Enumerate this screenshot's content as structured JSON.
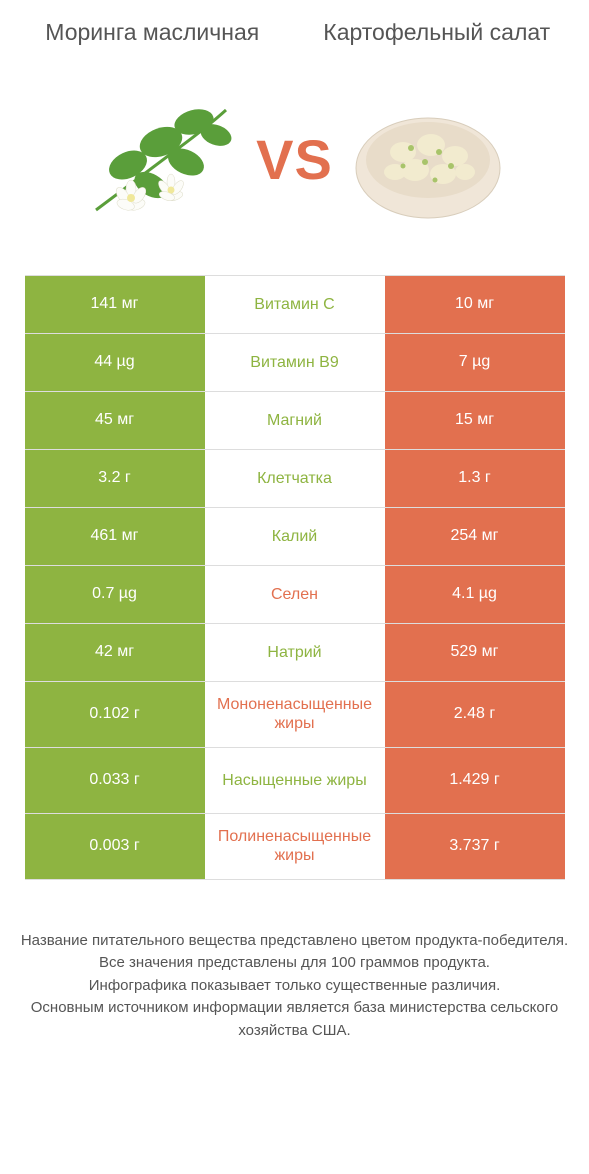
{
  "header": {
    "left_title": "Моринга масличная",
    "right_title": "Картофельный салат"
  },
  "vs_label": "VS",
  "colors": {
    "green": "#8eb441",
    "orange": "#e2704f",
    "row_border": "#dddddd",
    "text_mid_green": "#8eb441",
    "text_mid_orange": "#e2704f"
  },
  "nutrients": [
    {
      "name": "Витамин C",
      "left": "141 мг",
      "right": "10 мг",
      "winner": "left",
      "tall": false
    },
    {
      "name": "Витамин B9",
      "left": "44 µg",
      "right": "7 µg",
      "winner": "left",
      "tall": false
    },
    {
      "name": "Магний",
      "left": "45 мг",
      "right": "15 мг",
      "winner": "left",
      "tall": false
    },
    {
      "name": "Клетчатка",
      "left": "3.2 г",
      "right": "1.3 г",
      "winner": "left",
      "tall": false
    },
    {
      "name": "Калий",
      "left": "461 мг",
      "right": "254 мг",
      "winner": "left",
      "tall": false
    },
    {
      "name": "Селен",
      "left": "0.7 µg",
      "right": "4.1 µg",
      "winner": "right",
      "tall": false
    },
    {
      "name": "Натрий",
      "left": "42 мг",
      "right": "529 мг",
      "winner": "left",
      "tall": false
    },
    {
      "name": "Мононенасыщенные жиры",
      "left": "0.102 г",
      "right": "2.48 г",
      "winner": "right",
      "tall": true
    },
    {
      "name": "Насыщенные жиры",
      "left": "0.033 г",
      "right": "1.429 г",
      "winner": "left",
      "tall": true
    },
    {
      "name": "Полиненасыщенные жиры",
      "left": "0.003 г",
      "right": "3.737 г",
      "winner": "right",
      "tall": true
    }
  ],
  "footer": {
    "line1": "Название питательного вещества представлено цветом продукта-победителя.",
    "line2": "Все значения представлены для 100 граммов продукта.",
    "line3": "Инфографика показывает только существенные различия.",
    "line4": "Основным источником информации является база министерства сельского хозяйства США."
  }
}
